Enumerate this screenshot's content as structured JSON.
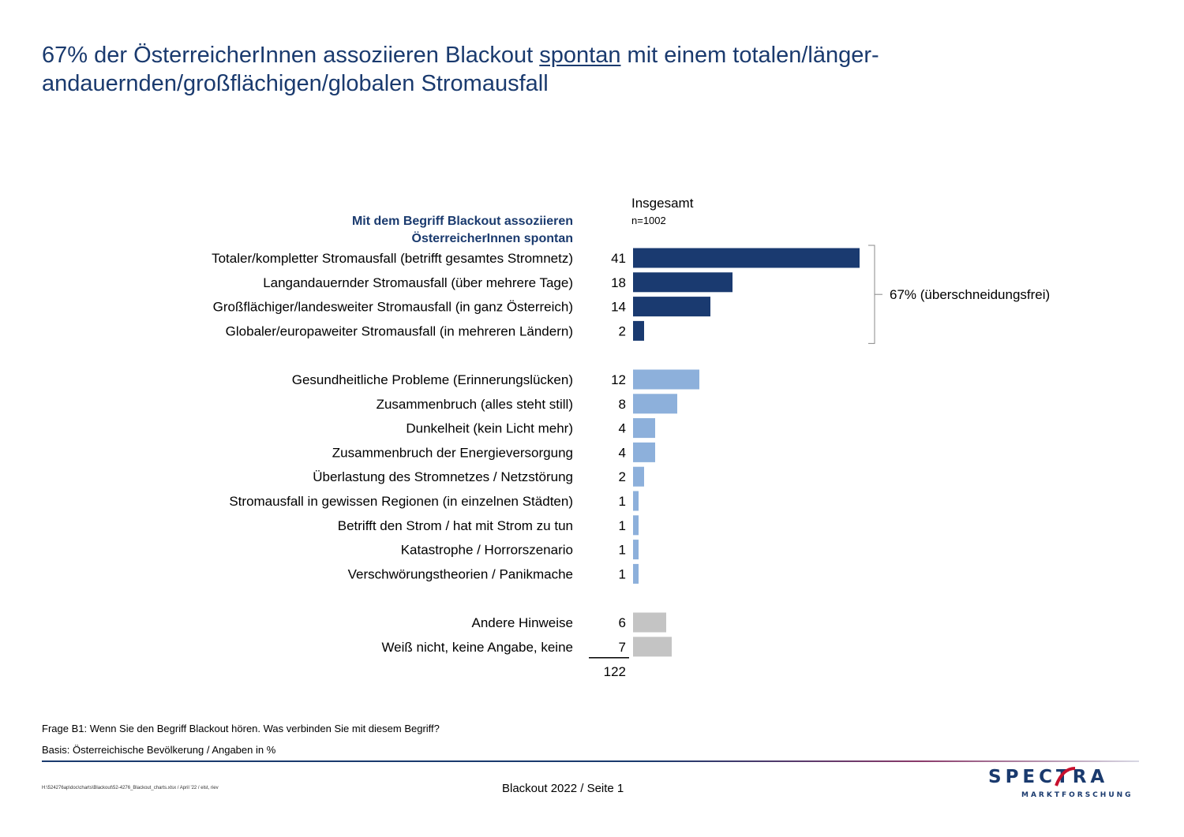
{
  "title": {
    "part1": "67% der ÖsterreicherInnen assoziieren Blackout ",
    "underlined": "spontan",
    "part2": " mit einem totalen/länger-",
    "line2": "andauernden/großflächigen/globalen Stromausfall"
  },
  "column": {
    "header": "Insgesamt",
    "n": "n=1002"
  },
  "section_header": {
    "line1": "Mit dem Begriff Blackout assoziieren",
    "line2": "ÖsterreicherInnen spontan"
  },
  "chart_data": {
    "type": "bar",
    "orientation": "horizontal",
    "categories": [
      "Totaler/kompletter Stromausfall (betrifft gesamtes Stromnetz)",
      "Langandauernder Stromausfall (über mehrere Tage)",
      "Großflächiger/landesweiter Stromausfall (in ganz Österreich)",
      "Globaler/europaweiter Stromausfall (in mehreren Ländern)",
      "Gesundheitliche Probleme (Erinnerungslücken)",
      "Zusammenbruch (alles steht still)",
      "Dunkelheit (kein Licht mehr)",
      "Zusammenbruch der Energieversorgung",
      "Überlastung des Stromnetzes / Netzstörung",
      "Stromausfall in gewissen Regionen (in einzelnen Städten)",
      "Betrifft den Strom / hat mit Strom zu tun",
      "Katastrophe / Horrorszenario",
      "Verschwörungstheorien / Panikmache",
      "Andere Hinweise",
      "Weiß nicht, keine Angabe, keine"
    ],
    "values": [
      41,
      18,
      14,
      2,
      12,
      8,
      4,
      4,
      2,
      1,
      1,
      1,
      1,
      6,
      7
    ],
    "groups": [
      0,
      0,
      0,
      0,
      1,
      1,
      1,
      1,
      1,
      1,
      1,
      1,
      1,
      2,
      2
    ],
    "group_colors": [
      "#1a3a70",
      "#8db0db",
      "#c4c4c4"
    ],
    "total": "122",
    "bracket_label": "67% (überschneidungsfrei)",
    "bracket_rows": [
      0,
      3
    ]
  },
  "footnotes": {
    "question": "Frage B1: Wenn Sie den Begriff Blackout hören. Was verbinden Sie mit diesem Begriff?",
    "basis": "Basis: Österreichische Bevölkerung / Angaben in %"
  },
  "footer": {
    "filepath": "H:\\524276ap\\doc\\charts\\Blackout\\52-4276_Blackout_charts.xlsx / April '22 / elst, riev",
    "page": "Blackout 2022  /  Seite  1",
    "logo_main": "SPECTRA",
    "logo_sub": "MARKTFORSCHUNG"
  }
}
